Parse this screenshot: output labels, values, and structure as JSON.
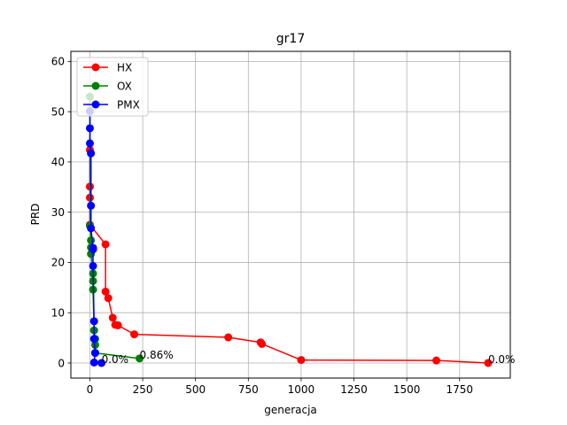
{
  "chart_data": {
    "type": "line",
    "title": "gr17",
    "xlabel": "generacja",
    "ylabel": "PRD",
    "xlim": [
      -90,
      1990
    ],
    "ylim": [
      -3,
      62
    ],
    "xticks": [
      0,
      250,
      500,
      750,
      1000,
      1250,
      1500,
      1750
    ],
    "yticks": [
      0,
      10,
      20,
      30,
      40,
      50,
      60
    ],
    "grid": true,
    "legend_position": "top-left",
    "series": [
      {
        "name": "HX",
        "color": "#ff0000",
        "points": [
          [
            0,
            42.4
          ],
          [
            0,
            35.1
          ],
          [
            0,
            32.9
          ],
          [
            0,
            27.5
          ],
          [
            74,
            23.6
          ],
          [
            74,
            14.2
          ],
          [
            87,
            12.9
          ],
          [
            108,
            9.0
          ],
          [
            120,
            7.6
          ],
          [
            133,
            7.5
          ],
          [
            210,
            5.7
          ],
          [
            655,
            5.1
          ],
          [
            808,
            4.1
          ],
          [
            814,
            3.8
          ],
          [
            1000,
            0.6
          ],
          [
            1640,
            0.5
          ],
          [
            1885,
            0.0
          ]
        ]
      },
      {
        "name": "OX",
        "color": "#008000",
        "points": [
          [
            0,
            53.0
          ],
          [
            0,
            27.3
          ],
          [
            5,
            24.4
          ],
          [
            5,
            23.0
          ],
          [
            5,
            21.7
          ],
          [
            15,
            17.8
          ],
          [
            15,
            16.3
          ],
          [
            15,
            14.6
          ],
          [
            20,
            6.5
          ],
          [
            25,
            4.8
          ],
          [
            25,
            3.6
          ],
          [
            25,
            2.0
          ],
          [
            235,
            0.9
          ]
        ]
      },
      {
        "name": "PMX",
        "color": "#0000ff",
        "points": [
          [
            0,
            50.1
          ],
          [
            0,
            46.7
          ],
          [
            0,
            43.7
          ],
          [
            5,
            41.7
          ],
          [
            5,
            31.3
          ],
          [
            5,
            26.8
          ],
          [
            15,
            22.9
          ],
          [
            15,
            22.6
          ],
          [
            15,
            19.3
          ],
          [
            20,
            8.3
          ],
          [
            20,
            4.8
          ],
          [
            25,
            2.0
          ],
          [
            20,
            0.1
          ],
          [
            55,
            0.0
          ]
        ]
      }
    ],
    "annotations": [
      {
        "text": "0.0%",
        "x": 55,
        "y": 0.0
      },
      {
        "text": "0.86%",
        "x": 235,
        "y": 0.9
      },
      {
        "text": "0.0%",
        "x": 1885,
        "y": 0.0
      }
    ]
  }
}
